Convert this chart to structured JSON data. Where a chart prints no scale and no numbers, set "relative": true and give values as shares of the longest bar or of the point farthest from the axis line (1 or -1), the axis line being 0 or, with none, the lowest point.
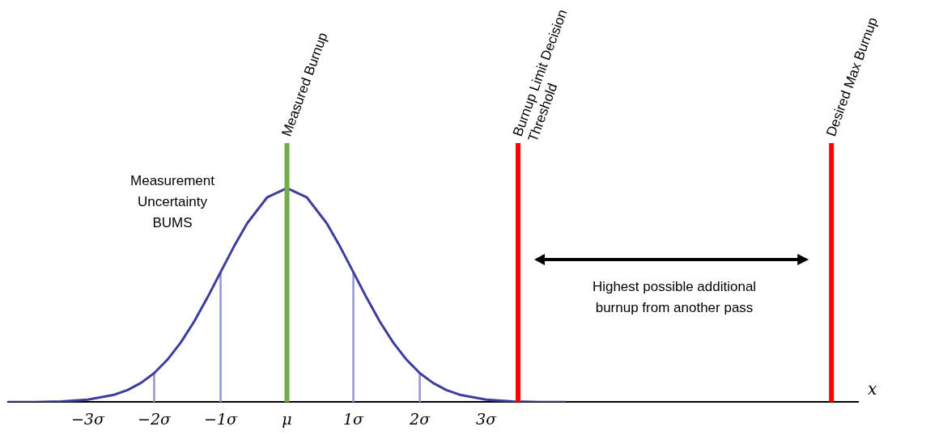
{
  "chart_data": {
    "type": "line",
    "relative": true,
    "xlabel": "x",
    "xlim": [
      -4.2,
      8.6
    ],
    "xticks": [
      {
        "value": -3,
        "label": "−3σ"
      },
      {
        "value": -2,
        "label": "−2σ"
      },
      {
        "value": -1,
        "label": "−1σ"
      },
      {
        "value": 0,
        "label": "μ"
      },
      {
        "value": 1,
        "label": "1σ"
      },
      {
        "value": 2,
        "label": "2σ"
      },
      {
        "value": 3,
        "label": "3σ"
      }
    ],
    "tick_labels": "x",
    "grid": false,
    "legend": false,
    "marker": "none",
    "line_style": "solid",
    "series": [
      {
        "color": "#3d3d9e",
        "x": [
          -4.2,
          -3.8,
          -3.4,
          -3,
          -2.6,
          -2.4,
          -2.2,
          -2,
          -1.8,
          -1.6,
          -1.4,
          -1.2,
          -1,
          -0.8,
          -0.6,
          -0.3,
          0,
          0.3,
          0.6,
          0.8,
          1,
          1.2,
          1.4,
          1.6,
          1.8,
          2,
          2.2,
          2.4,
          2.6,
          3,
          3.4,
          3.8,
          4.2
        ],
        "values": [
          0,
          0,
          0.003,
          0.011,
          0.034,
          0.056,
          0.089,
          0.135,
          0.198,
          0.278,
          0.375,
          0.487,
          0.607,
          0.726,
          0.835,
          0.956,
          1,
          0.956,
          0.835,
          0.726,
          0.607,
          0.487,
          0.375,
          0.278,
          0.198,
          0.135,
          0.089,
          0.056,
          0.034,
          0.011,
          0.003,
          0,
          0
        ]
      },
      {
        "type": "bar",
        "color": "#9a9ad6",
        "x": [
          -2,
          -1,
          1,
          2
        ],
        "values": [
          0.135,
          0.607,
          0.607,
          0.135
        ]
      }
    ],
    "ref_lines": [
      {
        "axis": "x",
        "value": 0,
        "label": "Measured Burnup",
        "color": "#70ad47"
      },
      {
        "axis": "x",
        "value": 3.48,
        "label": "Burnup Limit Decision\nThreshold",
        "color": "#ff0000"
      },
      {
        "axis": "x",
        "value": 8.2,
        "label": "Desired Max Burnup",
        "color": "#ff0000"
      }
    ],
    "annotations": [
      "Measurement\nUncertainty\nBUMS",
      "Highest possible additional\nburnup from another pass"
    ]
  }
}
